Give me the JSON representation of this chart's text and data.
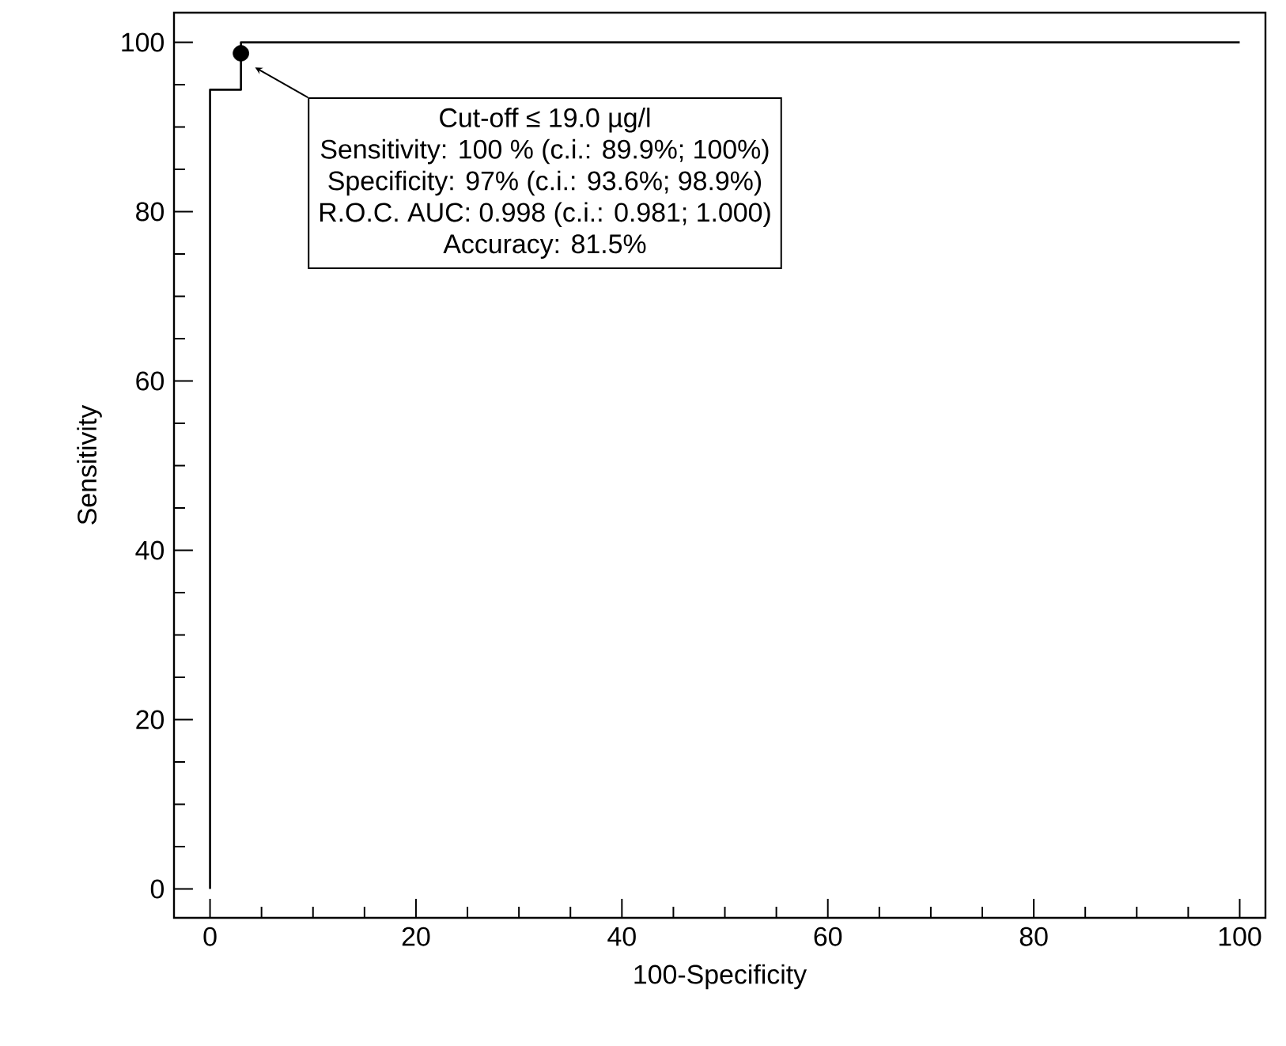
{
  "chart_data": {
    "type": "step",
    "xlabel": "100-Specificity",
    "ylabel": "Sensitivity",
    "xlim": [
      -3.5,
      102.5
    ],
    "ylim": [
      -3.4,
      103.5
    ],
    "xticks": [
      0,
      20,
      40,
      60,
      80,
      100
    ],
    "yticks": [
      0,
      20,
      40,
      60,
      80,
      100
    ],
    "series": [
      {
        "color": "#000000",
        "x": [
          0,
          0,
          3,
          100
        ],
        "values": [
          0,
          94.4,
          100,
          100
        ]
      },
      {
        "type": "scatter",
        "color": "#000000",
        "marker": "circle",
        "x": [
          3
        ],
        "values": [
          98.7
        ]
      }
    ],
    "annotations": [
      "Cut-off ≤ 19.0 µg/l",
      "Sensitivity: 100 % (c.i.: 89.9%; 100%)",
      "Specificity: 97% (c.i.: 93.6%; 98.9%)",
      "R.O.C. AUC: 0.998 (c.i.: 0.981; 1.000)",
      "Accuracy: 81.5%"
    ]
  }
}
